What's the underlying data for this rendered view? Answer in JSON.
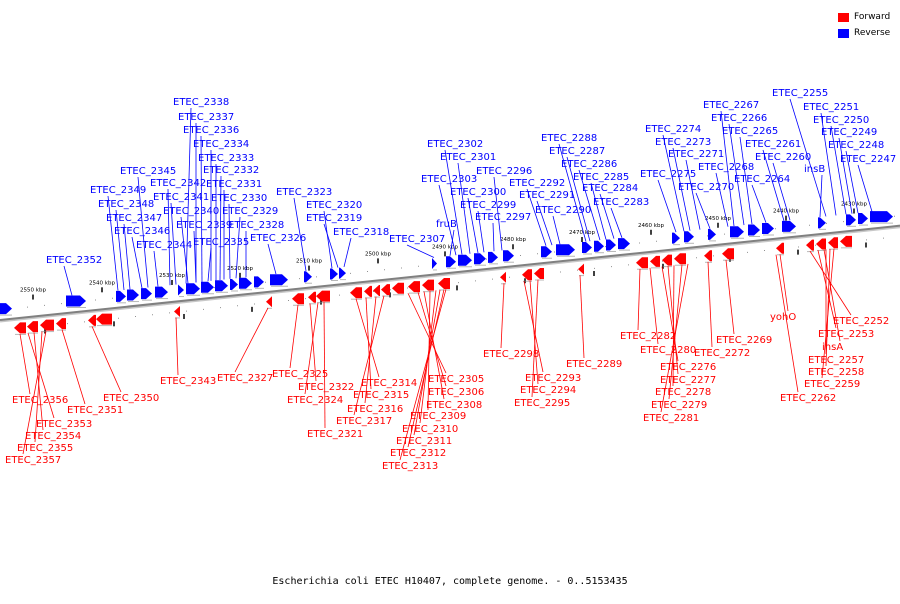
{
  "caption": "Escherichia coli ETEC H10407, complete genome. - 0..5153435",
  "legend": [
    {
      "label": "Forward",
      "color": "#ff0000"
    },
    {
      "label": "Reverse",
      "color": "#0000ff"
    }
  ],
  "colors": {
    "forward": "#ff0000",
    "reverse": "#0000ff",
    "axis": "#808080"
  },
  "ticks": [
    "2550 kbp",
    "2540 kbp",
    "2530 kbp",
    "2520 kbp",
    "2510 kbp",
    "2500 kbp",
    "2490 kbp",
    "2480 kbp",
    "2470 kbp",
    "2460 kbp",
    "2450 kbp",
    "2440 kbp",
    "2430 kbp"
  ],
  "reverse_labels": [
    "ETEC_2352",
    "ETEC_2349",
    "ETEC_2348",
    "ETEC_2347",
    "ETEC_2346",
    "ETEC_2345",
    "ETEC_2344",
    "ETEC_2342",
    "ETEC_2341",
    "ETEC_2340",
    "ETEC_2339",
    "ETEC_2338",
    "ETEC_2337",
    "ETEC_2336",
    "ETEC_2335",
    "ETEC_2334",
    "ETEC_2333",
    "ETEC_2332",
    "ETEC_2331",
    "ETEC_2330",
    "ETEC_2329",
    "ETEC_2328",
    "ETEC_2326",
    "ETEC_2323",
    "ETEC_2320",
    "ETEC_2319",
    "ETEC_2318",
    "ETEC_2307",
    "fruB",
    "ETEC_2303",
    "ETEC_2302",
    "ETEC_2301",
    "ETEC_2300",
    "ETEC_2299",
    "ETEC_2297",
    "ETEC_2296",
    "ETEC_2292",
    "ETEC_2291",
    "ETEC_2290",
    "ETEC_2288",
    "ETEC_2287",
    "ETEC_2286",
    "ETEC_2285",
    "ETEC_2284",
    "ETEC_2283",
    "ETEC_2275",
    "ETEC_2274",
    "ETEC_2273",
    "ETEC_2271",
    "ETEC_2270",
    "ETEC_2268",
    "ETEC_2267",
    "ETEC_2266",
    "ETEC_2265",
    "ETEC_2264",
    "ETEC_2261",
    "ETEC_2260",
    "insB",
    "ETEC_2255",
    "ETEC_2251",
    "ETEC_2250",
    "ETEC_2249",
    "ETEC_2248",
    "ETEC_2247"
  ],
  "forward_labels": [
    "ETEC_2356",
    "ETEC_2353",
    "ETEC_2354",
    "ETEC_2355",
    "ETEC_2357",
    "ETEC_2351",
    "ETEC_2350",
    "ETEC_2343",
    "ETEC_2327",
    "ETEC_2325",
    "ETEC_2322",
    "ETEC_2324",
    "ETEC_2321",
    "ETEC_2314",
    "ETEC_2315",
    "ETEC_2316",
    "ETEC_2317",
    "ETEC_2305",
    "ETEC_2306",
    "ETEC_2308",
    "ETEC_2309",
    "ETEC_2310",
    "ETEC_2311",
    "ETEC_2312",
    "ETEC_2313",
    "ETEC_2298",
    "ETEC_2293",
    "ETEC_2294",
    "ETEC_2295",
    "ETEC_2289",
    "ETEC_2282",
    "ETEC_2280",
    "ETEC_2276",
    "ETEC_2277",
    "ETEC_2278",
    "ETEC_2279",
    "ETEC_2281",
    "ETEC_2272",
    "ETEC_2269",
    "yohO",
    "ETEC_2262",
    "ETEC_2252",
    "ETEC_2253",
    "insA",
    "ETEC_2257",
    "ETEC_2258",
    "ETEC_2259"
  ]
}
